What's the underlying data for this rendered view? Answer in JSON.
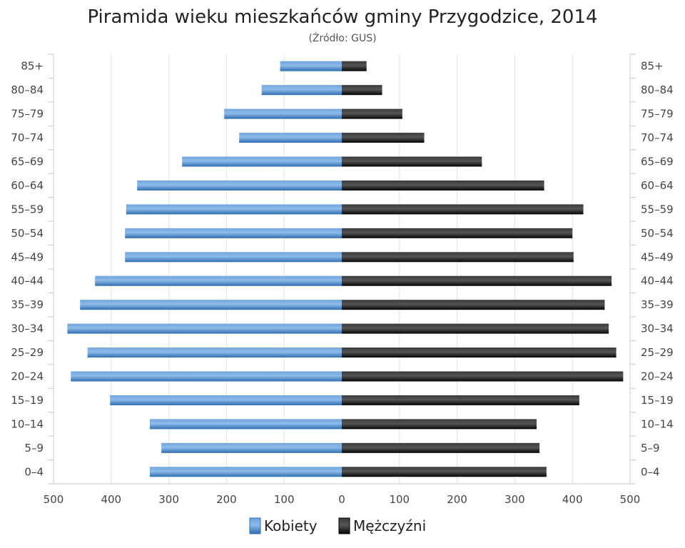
{
  "chart_data": {
    "type": "bar",
    "orientation": "horizontal-pyramid",
    "title": "Piramida wieku mieszkańców gminy Przygodzice, 2014",
    "subtitle": "(Źródło: GUS)",
    "categories": [
      "0–4",
      "5–9",
      "10–14",
      "15–19",
      "20–24",
      "25–29",
      "30–34",
      "35–39",
      "40–44",
      "45–49",
      "50–54",
      "55–59",
      "60–64",
      "65–69",
      "70–74",
      "75–79",
      "80–84",
      "85+"
    ],
    "series": [
      {
        "name": "Kobiety",
        "side": "left",
        "color": "#4a8bd0",
        "values": [
          333,
          313,
          333,
          402,
          470,
          441,
          476,
          454,
          428,
          376,
          376,
          374,
          355,
          277,
          178,
          204,
          139,
          107
        ]
      },
      {
        "name": "Mężczyźni",
        "side": "right",
        "color": "#1a1a1a",
        "values": [
          355,
          343,
          338,
          412,
          488,
          476,
          463,
          456,
          468,
          402,
          400,
          419,
          351,
          243,
          143,
          105,
          70,
          43
        ]
      }
    ],
    "x_ticks": [
      "500",
      "400",
      "300",
      "200",
      "100",
      "0",
      "100",
      "200",
      "300",
      "400",
      "500"
    ],
    "xlim": [
      -500,
      500
    ],
    "grid": true,
    "legend_position": "bottom-center"
  }
}
